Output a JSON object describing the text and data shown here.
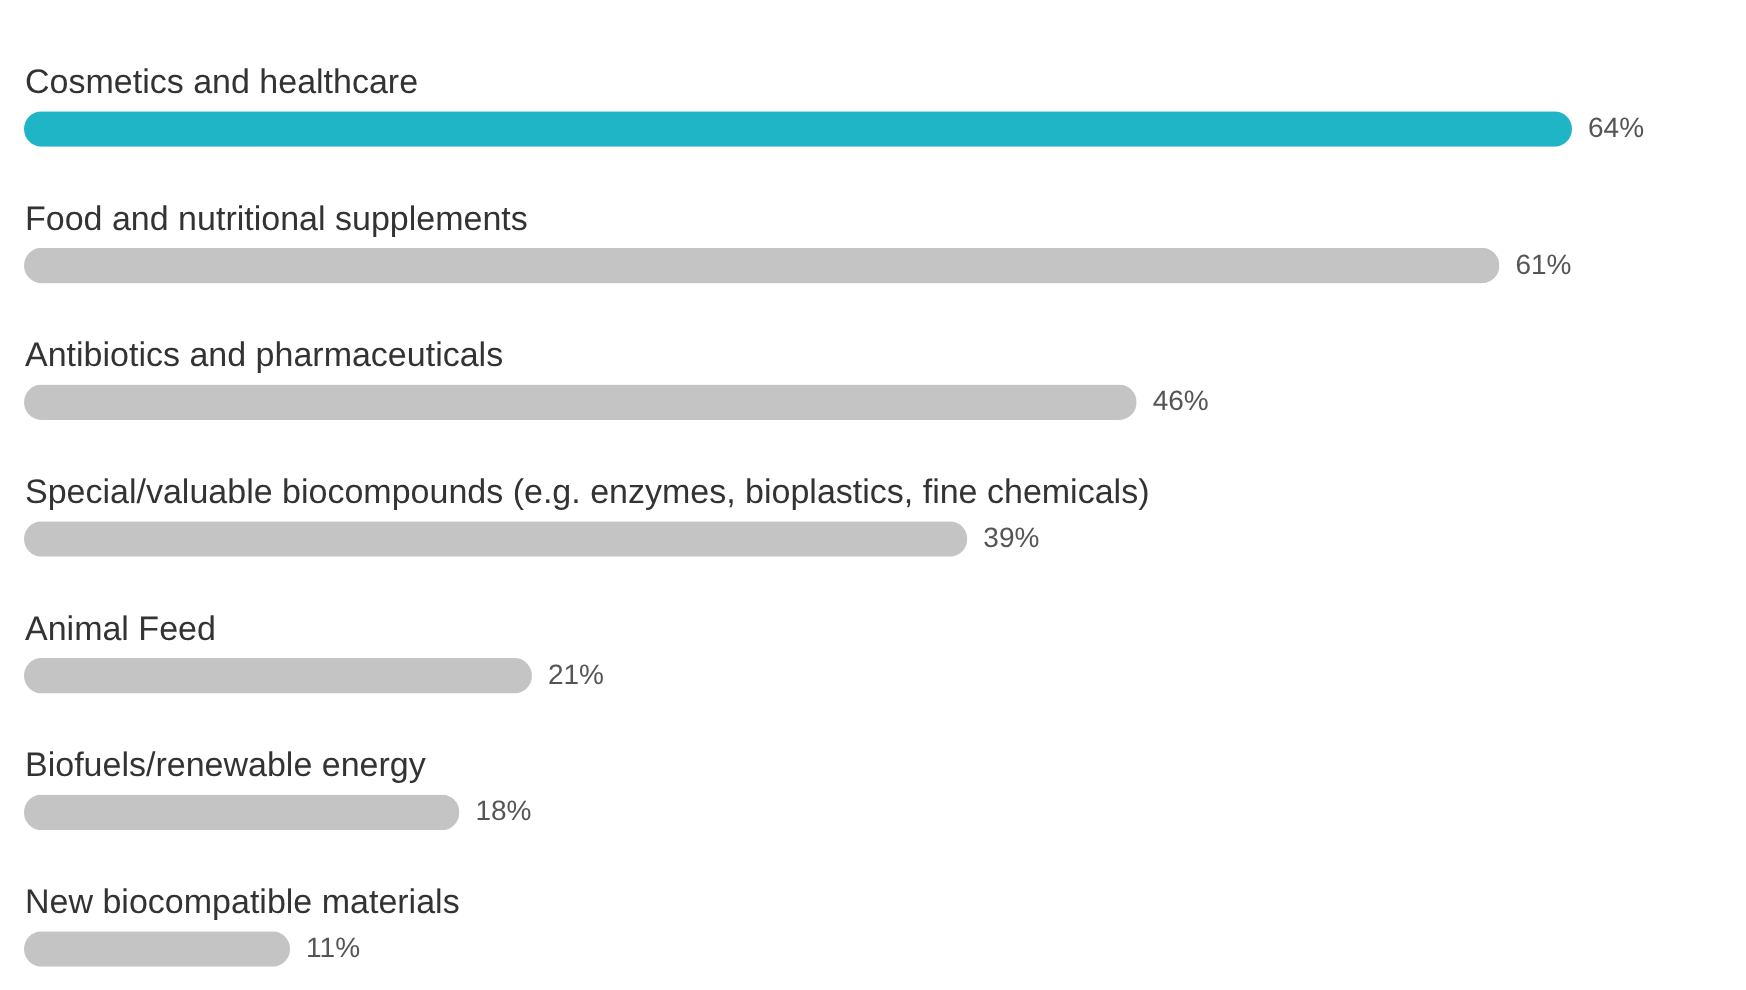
{
  "chart_data": {
    "type": "bar",
    "orientation": "horizontal",
    "categories": [
      "Cosmetics and healthcare",
      "Food and nutritional supplements",
      "Antibiotics and pharmaceuticals",
      "Special/valuable biocompounds (e.g. enzymes, bioplastics, fine chemicals)",
      "Animal Feed",
      "Biofuels/renewable energy",
      "New biocompatible materials"
    ],
    "values": [
      64,
      61,
      46,
      39,
      21,
      18,
      11
    ],
    "value_labels": [
      "64%",
      "61%",
      "46%",
      "39%",
      "21%",
      "18%",
      "11%"
    ],
    "colors": [
      "#1fb4c6",
      "#c4c4c4",
      "#c4c4c4",
      "#c4c4c4",
      "#c4c4c4",
      "#c4c4c4",
      "#c4c4c4"
    ],
    "legend": false
  }
}
